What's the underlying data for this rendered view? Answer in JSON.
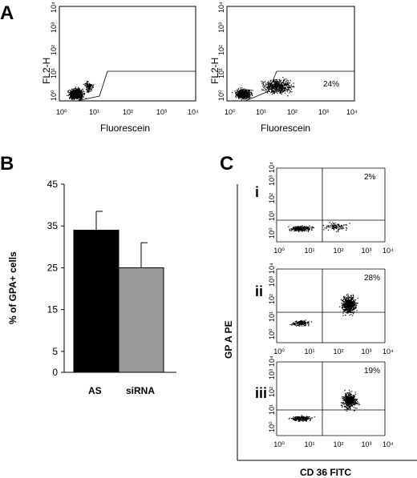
{
  "panel_labels": {
    "a": "A",
    "b": "B",
    "c": "C"
  },
  "chart_data": [
    {
      "type": "scatter",
      "panel": "A",
      "subplot": "left",
      "xlabel": "Fluorescein",
      "ylabel": "FL2-H",
      "x_scale": "log",
      "y_scale": "log",
      "xlim": [
        1,
        10000
      ],
      "ylim": [
        1,
        10000
      ],
      "x_tick_labels": [
        "10⁰",
        "10¹",
        "10²",
        "10³",
        "10⁴"
      ],
      "y_tick_labels": [
        "10⁰",
        "10¹",
        "10²",
        "10³",
        "10⁴"
      ],
      "gate_percentage": ""
    },
    {
      "type": "scatter",
      "panel": "A",
      "subplot": "right",
      "xlabel": "Fluorescein",
      "ylabel": "FL2-H",
      "x_scale": "log",
      "y_scale": "log",
      "xlim": [
        1,
        10000
      ],
      "ylim": [
        1,
        10000
      ],
      "x_tick_labels": [
        "10⁰",
        "10¹",
        "10²",
        "10³",
        "10⁴"
      ],
      "y_tick_labels": [
        "10⁰",
        "10¹",
        "10²",
        "10³",
        "10⁴"
      ],
      "gate_percentage": "24%"
    },
    {
      "type": "bar",
      "panel": "B",
      "categories": [
        "AS",
        "siRNA"
      ],
      "values": [
        34,
        25
      ],
      "errors": [
        4.5,
        6
      ],
      "colors": [
        "#000000",
        "#999999"
      ],
      "ylabel": "% of GPA+ cells",
      "ylim": [
        0,
        45
      ],
      "y_ticks": [
        "0",
        "5",
        "15",
        "25",
        "35",
        "45"
      ]
    },
    {
      "type": "scatter",
      "panel": "C",
      "shared_xlabel": "CD 36 FITC",
      "shared_ylabel": "GP A PE",
      "x_scale": "log",
      "y_scale": "log",
      "tick_labels": [
        "10⁰",
        "10¹",
        "10²",
        "10³",
        "10⁴"
      ],
      "subplots": [
        {
          "label": "i",
          "upper_right_percentage": "2%"
        },
        {
          "label": "ii",
          "upper_right_percentage": "28%"
        },
        {
          "label": "iii",
          "upper_right_percentage": "19%"
        }
      ]
    }
  ]
}
